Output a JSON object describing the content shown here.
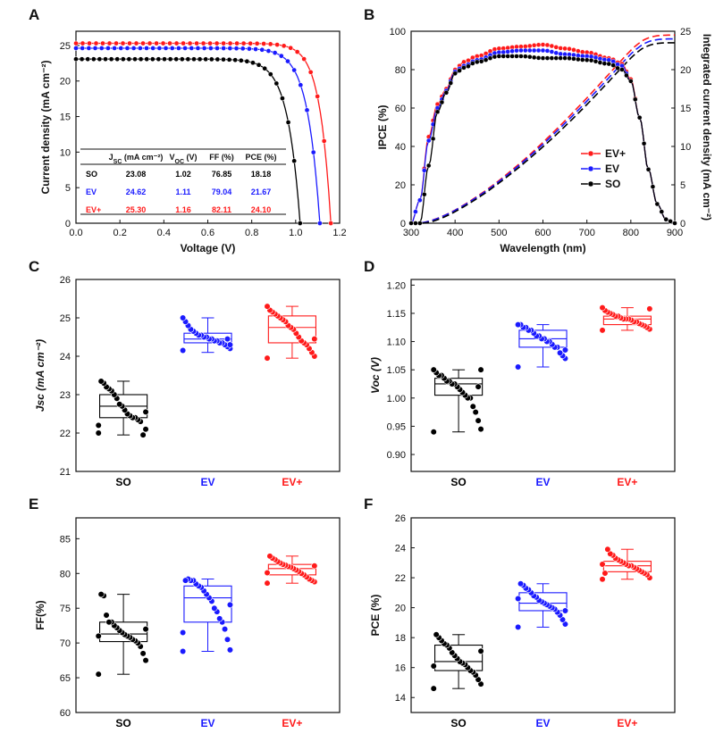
{
  "colors": {
    "SO": "#000000",
    "EV": "#1a1aff",
    "EV+": "#ff1a1a"
  },
  "panels": {
    "A": {
      "letter": "A",
      "xlabel": "Voltage (V)",
      "ylabel": "Current density (mA cm⁻²)",
      "xlim": [
        0,
        1.2
      ],
      "ylim": [
        0,
        27
      ],
      "xticks": [
        0.0,
        0.2,
        0.4,
        0.6,
        0.8,
        1.0,
        1.2
      ],
      "yticks": [
        0,
        5,
        10,
        15,
        20,
        25
      ],
      "table": {
        "headers": [
          "J<sub>SC</sub> (mA cm⁻²)",
          "V<sub>OC</sub> (V)",
          "FF (%)",
          "PCE (%)"
        ],
        "rows": [
          {
            "label": "SO",
            "values": [
              "23.08",
              "1.02",
              "76.85",
              "18.18"
            ]
          },
          {
            "label": "EV",
            "values": [
              "24.62",
              "1.11",
              "79.04",
              "21.67"
            ]
          },
          {
            "label": "EV+",
            "values": [
              "25.30",
              "1.16",
              "82.11",
              "24.10"
            ]
          }
        ]
      }
    },
    "B": {
      "letter": "B",
      "xlabel": "Wavelength (nm)",
      "ylabel": "IPCE (%)",
      "ylabel2": "Integrated current density (mA cm⁻²)",
      "xlim": [
        300,
        900
      ],
      "ylim": [
        0,
        100
      ],
      "ylim2": [
        0,
        25
      ],
      "xticks": [
        300,
        400,
        500,
        600,
        700,
        800,
        900
      ],
      "yticks": [
        0,
        20,
        40,
        60,
        80,
        100
      ],
      "yticks2": [
        0,
        5,
        10,
        15,
        20,
        25
      ],
      "legend": [
        "EV+",
        "EV",
        "SO"
      ]
    },
    "C": {
      "letter": "C",
      "ylabel": "Jsc (mA cm⁻²)",
      "ylim": [
        21,
        26
      ],
      "yticks": [
        21,
        22,
        23,
        24,
        25,
        26
      ]
    },
    "D": {
      "letter": "D",
      "ylabel": "Voc (V)",
      "ylim": [
        0.87,
        1.21
      ],
      "yticks": [
        0.9,
        0.95,
        1.0,
        1.05,
        1.1,
        1.15,
        1.2
      ]
    },
    "E": {
      "letter": "E",
      "ylabel": "FF(%)",
      "ylim": [
        60,
        88
      ],
      "yticks": [
        60,
        65,
        70,
        75,
        80,
        85
      ]
    },
    "F": {
      "letter": "F",
      "ylabel": "PCE (%)",
      "ylim": [
        13,
        26
      ],
      "yticks": [
        14,
        16,
        18,
        20,
        22,
        24,
        26
      ]
    }
  },
  "chart_data": [
    {
      "panel": "A",
      "type": "line",
      "xlabel": "Voltage (V)",
      "ylabel": "Current density (mA cm⁻²)",
      "xlim": [
        0,
        1.2
      ],
      "ylim": [
        0,
        27
      ],
      "series": [
        {
          "name": "SO",
          "jsc": 23.08,
          "voc": 1.02,
          "ff": 76.85,
          "pce": 18.18,
          "knee_voltage": 0.84
        },
        {
          "name": "EV",
          "jsc": 24.62,
          "voc": 1.11,
          "ff": 79.04,
          "pce": 21.67,
          "knee_voltage": 0.93
        },
        {
          "name": "EV+",
          "jsc": 25.3,
          "voc": 1.16,
          "ff": 82.11,
          "pce": 24.1,
          "knee_voltage": 1.0
        }
      ]
    },
    {
      "panel": "B",
      "type": "line",
      "xlabel": "Wavelength (nm)",
      "ylabel": "IPCE (%)",
      "ylabel2": "Integrated current density (mA cm⁻²)",
      "xlim": [
        300,
        900
      ],
      "ylim": [
        0,
        100
      ],
      "ylim2": [
        0,
        25
      ],
      "series": [
        {
          "name": "EV+",
          "ipce_x": [
            300,
            320,
            340,
            360,
            380,
            400,
            420,
            450,
            500,
            550,
            600,
            650,
            700,
            750,
            780,
            800,
            820,
            840,
            860,
            880,
            900
          ],
          "ipce_y": [
            0,
            12,
            45,
            62,
            70,
            80,
            84,
            87,
            91,
            92,
            93,
            91,
            89,
            86,
            83,
            75,
            55,
            28,
            10,
            2,
            0
          ],
          "integrated_end": 24.5
        },
        {
          "name": "EV",
          "ipce_x": [
            300,
            320,
            340,
            360,
            380,
            400,
            420,
            450,
            500,
            550,
            600,
            650,
            700,
            750,
            780,
            800,
            820,
            840,
            860,
            880,
            900
          ],
          "ipce_y": [
            0,
            12,
            43,
            60,
            69,
            79,
            82,
            85,
            89,
            90,
            90,
            88,
            87,
            85,
            82,
            74,
            55,
            28,
            10,
            2,
            0
          ],
          "integrated_end": 24.0
        },
        {
          "name": "SO",
          "ipce_x": [
            300,
            320,
            340,
            360,
            380,
            400,
            420,
            450,
            500,
            550,
            600,
            650,
            700,
            750,
            780,
            800,
            820,
            840,
            860,
            880,
            900
          ],
          "ipce_y": [
            0,
            0,
            30,
            58,
            68,
            78,
            81,
            84,
            87,
            87,
            86,
            86,
            85,
            83,
            80,
            74,
            55,
            28,
            10,
            2,
            0
          ],
          "integrated_end": 23.5
        }
      ]
    },
    {
      "panel": "C",
      "type": "box",
      "ylabel": "Jsc (mA cm⁻²)",
      "ylim": [
        21,
        26
      ],
      "categories": [
        "SO",
        "EV",
        "EV+"
      ],
      "series": [
        {
          "name": "SO",
          "q1": 22.4,
          "median": 22.7,
          "q3": 23.0,
          "whisker_low": 21.95,
          "whisker_high": 23.35,
          "points": [
            22.0,
            22.1,
            21.95,
            22.3,
            22.35,
            22.4,
            22.4,
            22.45,
            22.5,
            22.6,
            22.7,
            22.75,
            22.9,
            23.0,
            23.1,
            23.15,
            23.2,
            23.3,
            23.35,
            22.2,
            22.55
          ]
        },
        {
          "name": "EV",
          "q1": 24.35,
          "median": 24.45,
          "q3": 24.6,
          "whisker_low": 24.1,
          "whisker_high": 25.0,
          "points": [
            24.15,
            24.2,
            24.25,
            24.3,
            24.35,
            24.35,
            24.4,
            24.4,
            24.45,
            24.45,
            24.5,
            24.5,
            24.55,
            24.55,
            24.6,
            24.65,
            24.7,
            24.8,
            24.9,
            25.0,
            24.3,
            24.45
          ]
        },
        {
          "name": "EV+",
          "q1": 24.35,
          "median": 24.75,
          "q3": 25.05,
          "whisker_low": 23.95,
          "whisker_high": 25.3,
          "points": [
            23.95,
            24.0,
            24.1,
            24.2,
            24.3,
            24.35,
            24.4,
            24.5,
            24.6,
            24.7,
            24.75,
            24.8,
            24.9,
            24.95,
            25.0,
            25.05,
            25.1,
            25.15,
            25.2,
            25.3,
            24.45
          ]
        }
      ]
    },
    {
      "panel": "D",
      "type": "box",
      "ylabel": "Voc (V)",
      "ylim": [
        0.87,
        1.21
      ],
      "categories": [
        "SO",
        "EV",
        "EV+"
      ],
      "series": [
        {
          "name": "SO",
          "q1": 1.005,
          "median": 1.025,
          "q3": 1.035,
          "whisker_low": 0.94,
          "whisker_high": 1.05,
          "points": [
            0.94,
            0.945,
            0.96,
            0.975,
            0.985,
            1.0,
            1.0,
            1.005,
            1.01,
            1.015,
            1.02,
            1.025,
            1.025,
            1.03,
            1.03,
            1.035,
            1.04,
            1.04,
            1.045,
            1.05,
            1.05,
            1.02
          ]
        },
        {
          "name": "EV",
          "q1": 1.09,
          "median": 1.105,
          "q3": 1.12,
          "whisker_low": 1.055,
          "whisker_high": 1.13,
          "points": [
            1.055,
            1.07,
            1.075,
            1.08,
            1.09,
            1.09,
            1.095,
            1.1,
            1.1,
            1.105,
            1.105,
            1.11,
            1.11,
            1.115,
            1.12,
            1.12,
            1.125,
            1.125,
            1.13,
            1.13,
            1.085
          ]
        },
        {
          "name": "EV+",
          "q1": 1.13,
          "median": 1.14,
          "q3": 1.145,
          "whisker_low": 1.12,
          "whisker_high": 1.16,
          "points": [
            1.12,
            1.122,
            1.125,
            1.128,
            1.13,
            1.132,
            1.135,
            1.135,
            1.138,
            1.14,
            1.14,
            1.14,
            1.142,
            1.145,
            1.145,
            1.148,
            1.15,
            1.152,
            1.155,
            1.16,
            1.158
          ]
        }
      ]
    },
    {
      "panel": "E",
      "type": "box",
      "ylabel": "FF(%)",
      "ylim": [
        60,
        88
      ],
      "categories": [
        "SO",
        "EV",
        "EV+"
      ],
      "series": [
        {
          "name": "SO",
          "q1": 70.2,
          "median": 71.3,
          "q3": 73.0,
          "whisker_low": 65.5,
          "whisker_high": 77.0,
          "points": [
            65.5,
            67.5,
            68.5,
            69.5,
            70.0,
            70.3,
            70.5,
            70.8,
            71.0,
            71.2,
            71.5,
            71.8,
            72.2,
            72.5,
            73.0,
            73.0,
            74.0,
            76.8,
            77.0,
            71.0,
            72.0
          ]
        },
        {
          "name": "EV",
          "q1": 73.0,
          "median": 76.5,
          "q3": 78.2,
          "whisker_low": 68.8,
          "whisker_high": 79.2,
          "points": [
            68.8,
            69.0,
            70.5,
            72.0,
            73.0,
            73.5,
            74.5,
            75.0,
            76.0,
            76.5,
            77.0,
            77.5,
            78.0,
            78.2,
            78.5,
            79.0,
            79.0,
            79.2,
            79.0,
            71.5,
            75.5
          ]
        },
        {
          "name": "EV+",
          "q1": 79.8,
          "median": 80.7,
          "q3": 81.3,
          "whisker_low": 78.6,
          "whisker_high": 82.5,
          "points": [
            78.6,
            78.8,
            79.0,
            79.2,
            79.5,
            79.8,
            80.0,
            80.3,
            80.5,
            80.7,
            80.9,
            81.0,
            81.2,
            81.3,
            81.5,
            81.7,
            82.0,
            82.2,
            82.5,
            80.1,
            81.1
          ]
        }
      ]
    },
    {
      "panel": "F",
      "type": "box",
      "ylabel": "PCE (%)",
      "ylim": [
        13,
        26
      ],
      "categories": [
        "SO",
        "EV",
        "EV+"
      ],
      "series": [
        {
          "name": "SO",
          "q1": 15.8,
          "median": 16.4,
          "q3": 17.5,
          "whisker_low": 14.6,
          "whisker_high": 18.2,
          "points": [
            14.6,
            14.9,
            15.2,
            15.5,
            15.7,
            15.8,
            16.0,
            16.2,
            16.3,
            16.4,
            16.6,
            16.8,
            17.0,
            17.3,
            17.5,
            17.6,
            17.8,
            18.0,
            18.2,
            16.1,
            17.1
          ]
        },
        {
          "name": "EV",
          "q1": 19.8,
          "median": 20.3,
          "q3": 21.0,
          "whisker_low": 18.7,
          "whisker_high": 21.6,
          "points": [
            18.7,
            18.9,
            19.2,
            19.5,
            19.7,
            19.9,
            20.0,
            20.1,
            20.2,
            20.3,
            20.4,
            20.5,
            20.7,
            20.8,
            21.0,
            21.2,
            21.3,
            21.5,
            21.6,
            20.6,
            19.8
          ]
        },
        {
          "name": "EV+",
          "q1": 22.4,
          "median": 22.8,
          "q3": 23.1,
          "whisker_low": 21.9,
          "whisker_high": 23.9,
          "points": [
            21.9,
            22.0,
            22.2,
            22.3,
            22.4,
            22.5,
            22.6,
            22.7,
            22.8,
            22.8,
            22.9,
            23.0,
            23.1,
            23.2,
            23.3,
            23.5,
            23.6,
            23.9,
            22.3,
            22.9
          ]
        }
      ]
    }
  ]
}
